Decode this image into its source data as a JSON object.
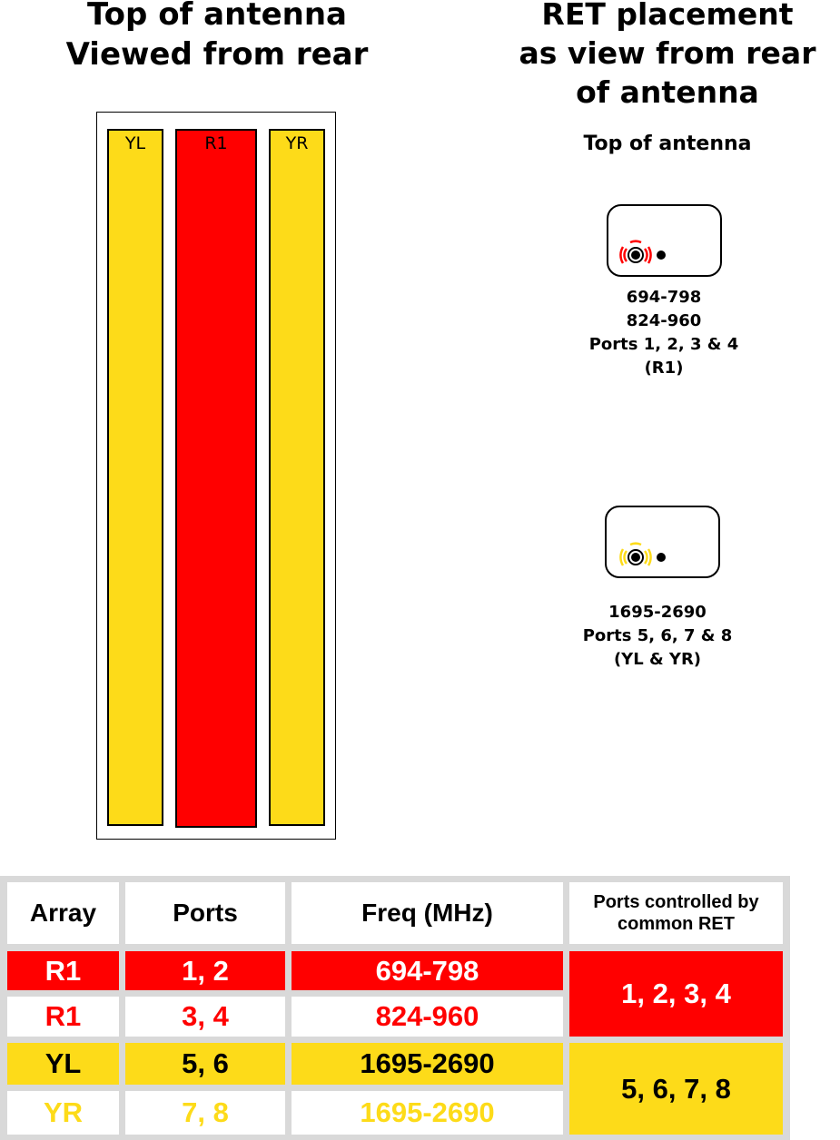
{
  "left_title": [
    "Top of antenna",
    "Viewed from rear"
  ],
  "right_title": [
    "RET placement",
    "as view from rear",
    "of antenna"
  ],
  "top_of_antenna_label": "Top of antenna",
  "columns": {
    "yl": "YL",
    "r1": "R1",
    "yr": "YR"
  },
  "colors": {
    "red": "#ff0000",
    "yellow": "#fddb19",
    "grid": "#d9d9d9"
  },
  "ret_units": [
    {
      "icon": "ret-connector-red-icon",
      "color": "#ff0000",
      "caption": [
        "694-798",
        "824-960",
        "Ports 1, 2, 3 & 4",
        "(R1)"
      ]
    },
    {
      "icon": "ret-connector-yellow-icon",
      "color": "#fddb19",
      "caption": [
        "1695-2690",
        "Ports 5, 6, 7 & 8",
        "(YL & YR)"
      ]
    }
  ],
  "table": {
    "headers": {
      "array": "Array",
      "ports": "Ports",
      "freq": "Freq (MHz)",
      "common_ret": "Ports controlled by common RET"
    },
    "rows": [
      {
        "array": "R1",
        "ports": "1, 2",
        "freq": "694-798"
      },
      {
        "array": "R1",
        "ports": "3, 4",
        "freq": "824-960"
      },
      {
        "array": "YL",
        "ports": "5, 6",
        "freq": "1695-2690"
      },
      {
        "array": "YR",
        "ports": "7, 8",
        "freq": "1695-2690"
      }
    ],
    "common_ret": [
      "1, 2, 3, 4",
      "5, 6, 7, 8"
    ]
  }
}
